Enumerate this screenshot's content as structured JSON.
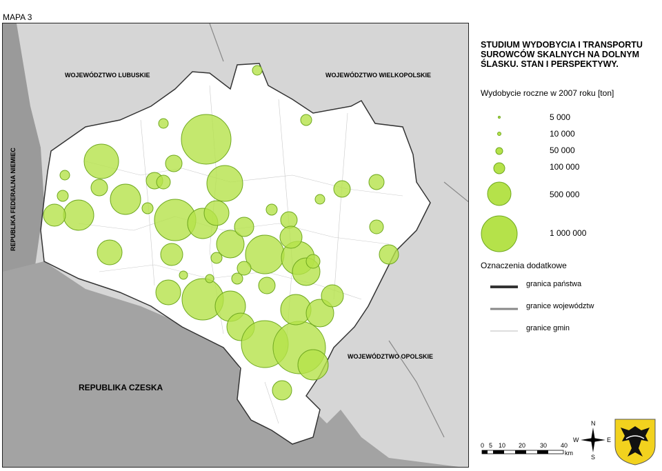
{
  "map_label": "MAPA 3",
  "title": "STUDIUM WYDOBYCIA I TRANSPORTU SUROWCÓW SKALNYCH NA DOLNYM ŚLASKU. STAN I PERSPEKTYWY.",
  "legend_title": "Wydobycie roczne w 2007 roku [ton]",
  "legend_sizes": [
    "5 000",
    "10 000",
    "50 000",
    "100 000",
    "500 000",
    "1 000 000"
  ],
  "additional_title": "Oznaczenia dodatkowe",
  "line_legend": [
    "granica państwa",
    "granice województw",
    "granice gmin"
  ],
  "regions": {
    "lubuskie": "WOJEWÓDZTWO LUBUSKIE",
    "wielkopolskie": "WOJEWÓDZTWO WIELKOPOLSKIE",
    "opolskie": "WOJEWÓDZTWO OPOLSKIE",
    "czeska": "REPUBLIKA CZESKA",
    "niemcy": "REPUBLIKA FEDERALNA NIEMIEC"
  },
  "scale_ticks": [
    "0",
    "5",
    "10",
    "20",
    "30",
    "40"
  ],
  "scale_unit": "km",
  "compass": {
    "n": "N",
    "s": "S",
    "e": "E",
    "w": "W"
  },
  "colors": {
    "circle_fill": "#b5e24a",
    "circle_stroke": "#6fa81f",
    "outside": "#d8d8d8",
    "czech": "#a3a3a3",
    "germany": "#9a9a9a"
  }
}
